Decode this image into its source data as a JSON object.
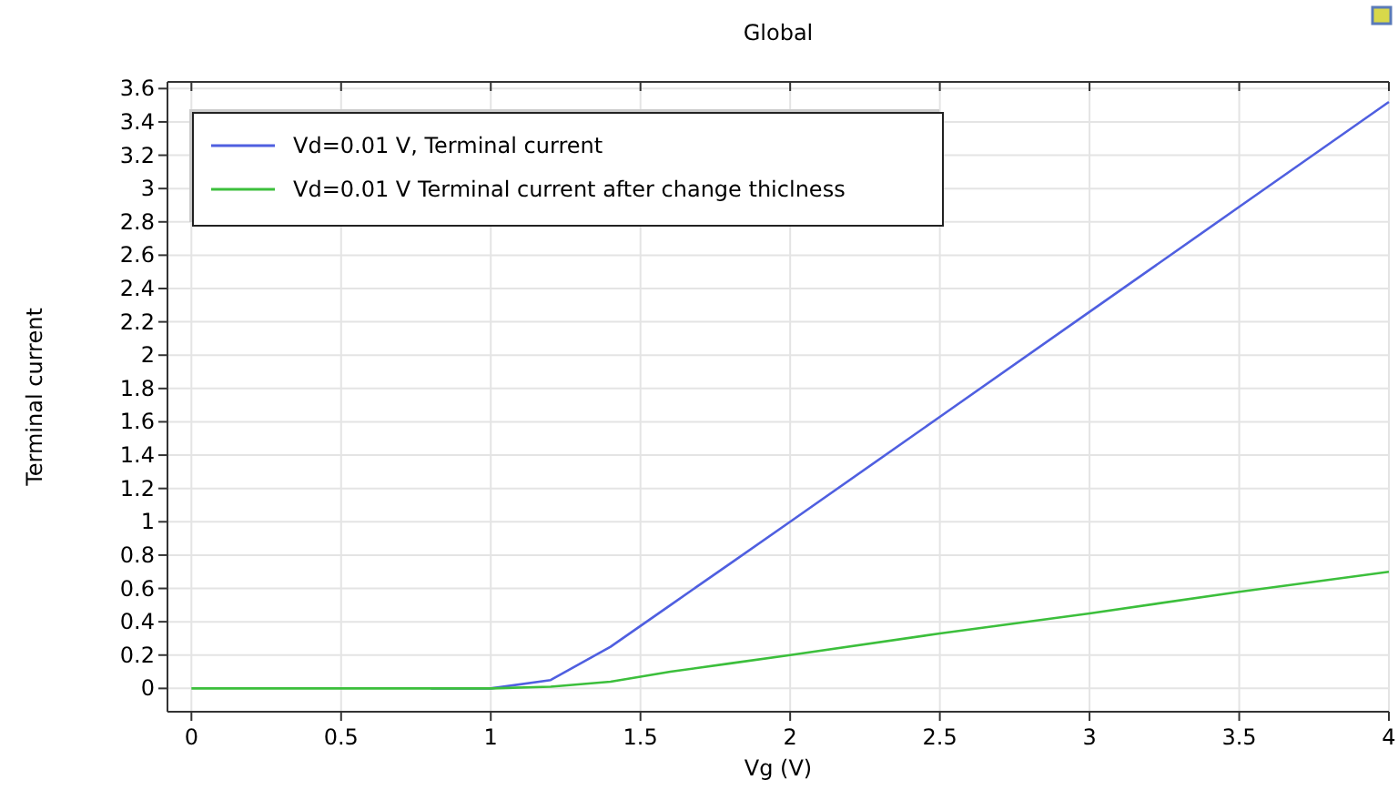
{
  "chart_data": {
    "type": "line",
    "title": "Global",
    "xlabel": "Vg (V)",
    "ylabel": "Terminal current",
    "x": [
      0,
      0.2,
      0.4,
      0.6,
      0.8,
      1,
      1.2,
      1.4,
      1.6,
      1.8,
      2,
      2.5,
      3,
      3.5,
      4
    ],
    "series": [
      {
        "name": "Vd=0.01 V, Terminal current",
        "color": "#4f5fe0",
        "values": [
          null,
          null,
          null,
          null,
          0,
          0,
          0.05,
          0.25,
          0.5,
          0.75,
          1.0,
          1.63,
          2.26,
          2.89,
          3.52
        ]
      },
      {
        "name": "Vd=0.01 V Terminal current after change thiclness",
        "color": "#3cbf3c",
        "values": [
          0,
          0,
          0,
          0,
          0,
          0,
          0.01,
          0.04,
          0.1,
          0.15,
          0.2,
          0.33,
          0.45,
          0.58,
          0.7
        ]
      }
    ],
    "xlim": [
      -0.08,
      4
    ],
    "ylim": [
      -0.14,
      3.64
    ],
    "xticks": [
      0,
      0.5,
      1,
      1.5,
      2,
      2.5,
      3,
      3.5,
      4
    ],
    "yticks": [
      0,
      0.2,
      0.4,
      0.6,
      0.8,
      1,
      1.2,
      1.4,
      1.6,
      1.8,
      2,
      2.2,
      2.4,
      2.6,
      2.8,
      3,
      3.2,
      3.4,
      3.6
    ],
    "grid": true,
    "legend": "top left",
    "marker": "none",
    "line_style": "solid"
  }
}
